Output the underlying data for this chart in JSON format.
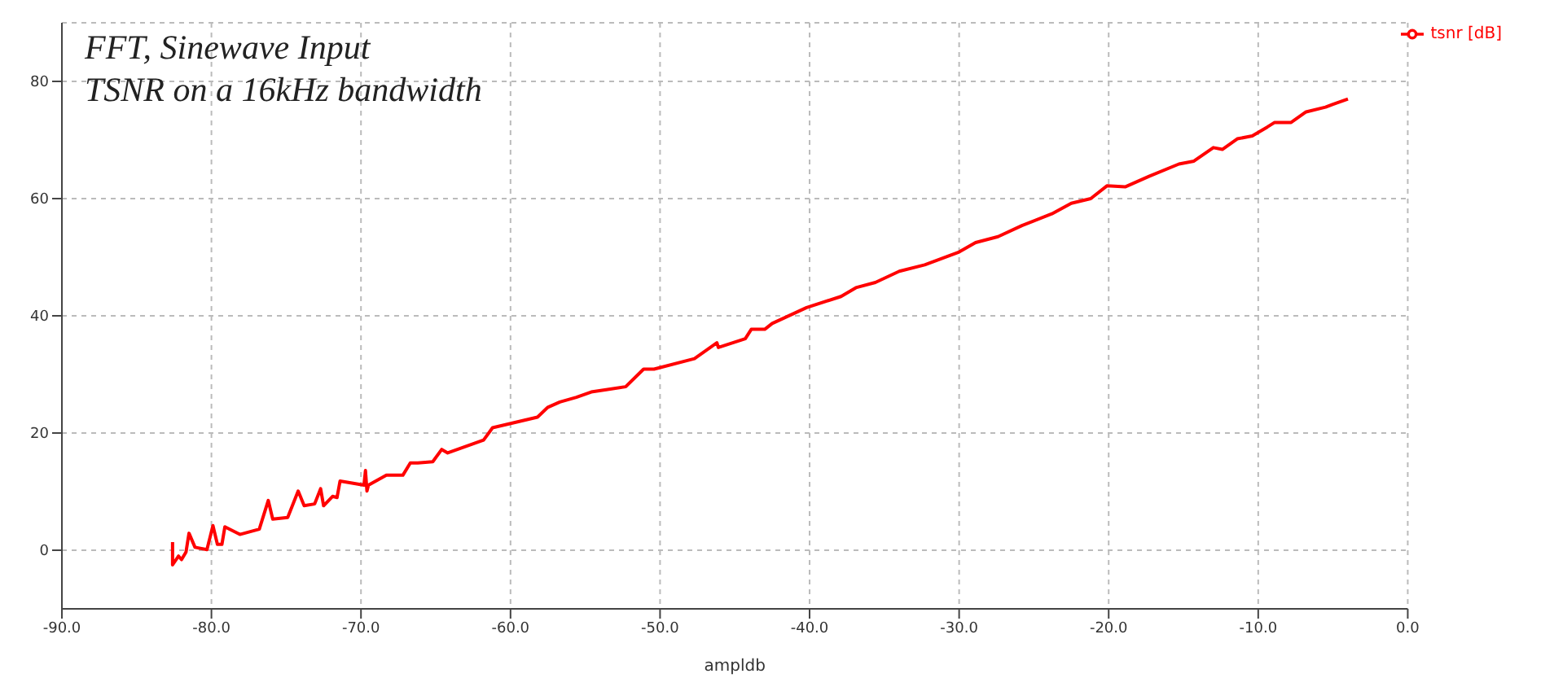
{
  "chart_data": {
    "type": "line",
    "title": "FFT,  Sinewave Input",
    "subtitle": "TSNR on a 16kHz bandwidth",
    "xlabel": "ampldb",
    "xlim": [
      -90,
      0
    ],
    "xticks": [
      {
        "value": -90,
        "label": "-90.0"
      },
      {
        "value": -80,
        "label": "-80.0"
      },
      {
        "value": -70,
        "label": "-70.0"
      },
      {
        "value": -60,
        "label": "-60.0"
      },
      {
        "value": -50,
        "label": "-50.0"
      },
      {
        "value": -40,
        "label": "-40.0"
      },
      {
        "value": -30,
        "label": "-30.0"
      },
      {
        "value": -20,
        "label": "-20.0"
      },
      {
        "value": -10,
        "label": "-10.0"
      },
      {
        "value": 0,
        "label": "0.0"
      }
    ],
    "ylim": [
      -10,
      90
    ],
    "yticks": [
      0,
      20,
      40,
      60,
      80
    ],
    "grid": true,
    "legend": "top right",
    "marker": "none",
    "x": [
      -82.6,
      -82.6,
      -82.2,
      -82.0,
      -81.7,
      -81.5,
      -81.1,
      -80.3,
      -79.9,
      -79.6,
      -79.3,
      -79.1,
      -78.1,
      -76.8,
      -76.2,
      -75.9,
      -74.9,
      -74.2,
      -73.8,
      -73.1,
      -72.7,
      -72.5,
      -71.9,
      -71.6,
      -71.4,
      -69.8,
      -69.7,
      -69.6,
      -69.5,
      -68.3,
      -67.2,
      -66.7,
      -66.2,
      -65.2,
      -64.6,
      -64.2,
      -61.8,
      -61.2,
      -58.2,
      -57.5,
      -56.7,
      -55.6,
      -54.6,
      -53.6,
      -52.3,
      -51.1,
      -50.4,
      -47.7,
      -46.2,
      -46.1,
      -44.3,
      -43.9,
      -43.0,
      -42.5,
      -40.2,
      -37.9,
      -36.9,
      -35.6,
      -34.0,
      -32.3,
      -30.0,
      -28.9,
      -27.4,
      -25.8,
      -23.8,
      -22.5,
      -21.2,
      -20.1,
      -18.9,
      -17.3,
      -15.3,
      -14.3,
      -13.0,
      -12.4,
      -11.4,
      -10.4,
      -9.4,
      -8.9,
      -7.8,
      -6.8,
      -5.5,
      -5.0,
      -4.0
    ],
    "series": [
      {
        "name": "tsnr [dB]",
        "color": "#ff0000",
        "values": [
          1.4,
          -2.5,
          -1.0,
          -1.6,
          -0.3,
          2.9,
          0.5,
          0.1,
          4.2,
          1.0,
          1.0,
          4.0,
          2.7,
          3.6,
          8.5,
          5.3,
          5.6,
          10.1,
          7.6,
          7.9,
          10.5,
          7.6,
          9.2,
          9.0,
          11.8,
          11.1,
          13.6,
          10.1,
          11.1,
          12.8,
          12.8,
          14.9,
          14.9,
          15.1,
          17.2,
          16.6,
          18.8,
          20.9,
          22.7,
          24.4,
          25.3,
          26.1,
          27.0,
          27.4,
          27.9,
          30.9,
          30.9,
          32.7,
          35.4,
          34.6,
          36.1,
          37.7,
          37.7,
          38.7,
          41.4,
          43.3,
          44.8,
          45.7,
          47.6,
          48.7,
          50.9,
          52.5,
          53.5,
          55.4,
          57.4,
          59.2,
          60.0,
          62.2,
          62.0,
          63.8,
          65.9,
          66.4,
          68.7,
          68.4,
          70.2,
          70.7,
          72.2,
          73.0,
          73.0,
          74.8,
          75.6,
          76.1,
          77.0
        ]
      }
    ]
  }
}
